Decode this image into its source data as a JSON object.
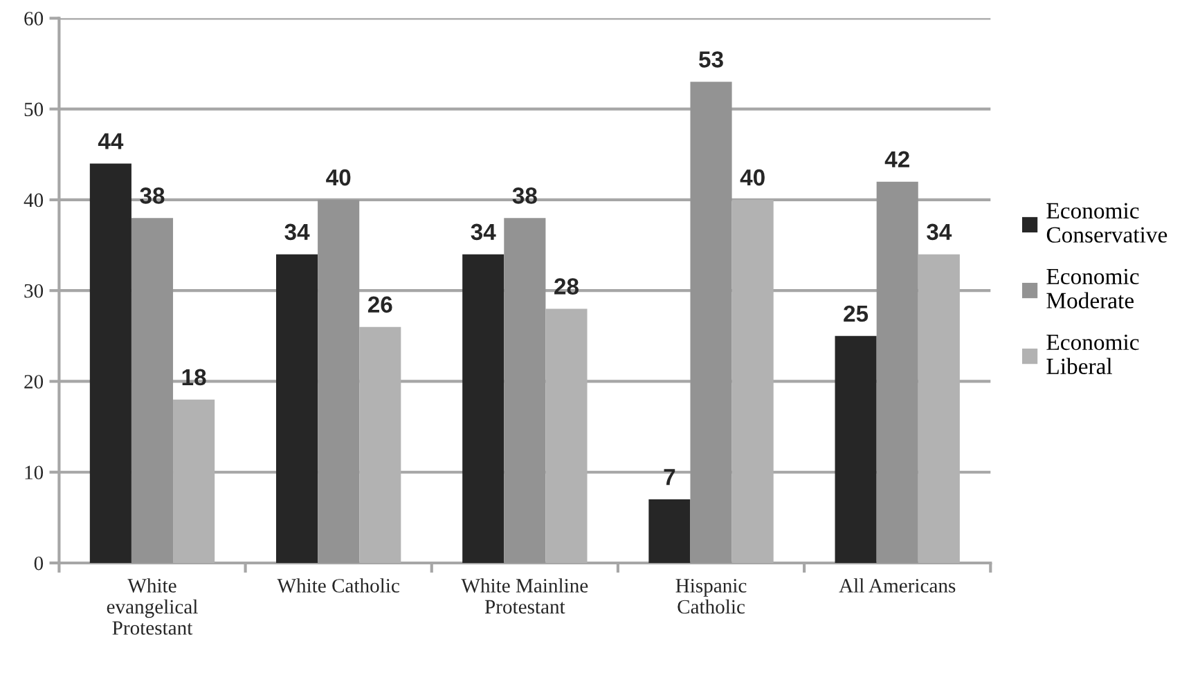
{
  "chart_data": {
    "type": "bar",
    "categories": [
      "White evangelical Protestant",
      "White Catholic",
      "White Mainline Protestant",
      "Hispanic Catholic",
      "All Americans"
    ],
    "series": [
      {
        "name": "Economic Conservative",
        "color": "#262626",
        "values": [
          44,
          34,
          34,
          7,
          25
        ]
      },
      {
        "name": "Economic Moderate",
        "color": "#939393",
        "values": [
          38,
          40,
          38,
          53,
          42
        ]
      },
      {
        "name": "Economic Liberal",
        "color": "#b2b2b2",
        "values": [
          18,
          26,
          28,
          40,
          34
        ]
      }
    ],
    "ylim": [
      0,
      60
    ],
    "yticks": [
      0,
      10,
      20,
      30,
      40,
      50,
      60
    ],
    "grid": "y",
    "legend": "right",
    "data_labels": true
  }
}
